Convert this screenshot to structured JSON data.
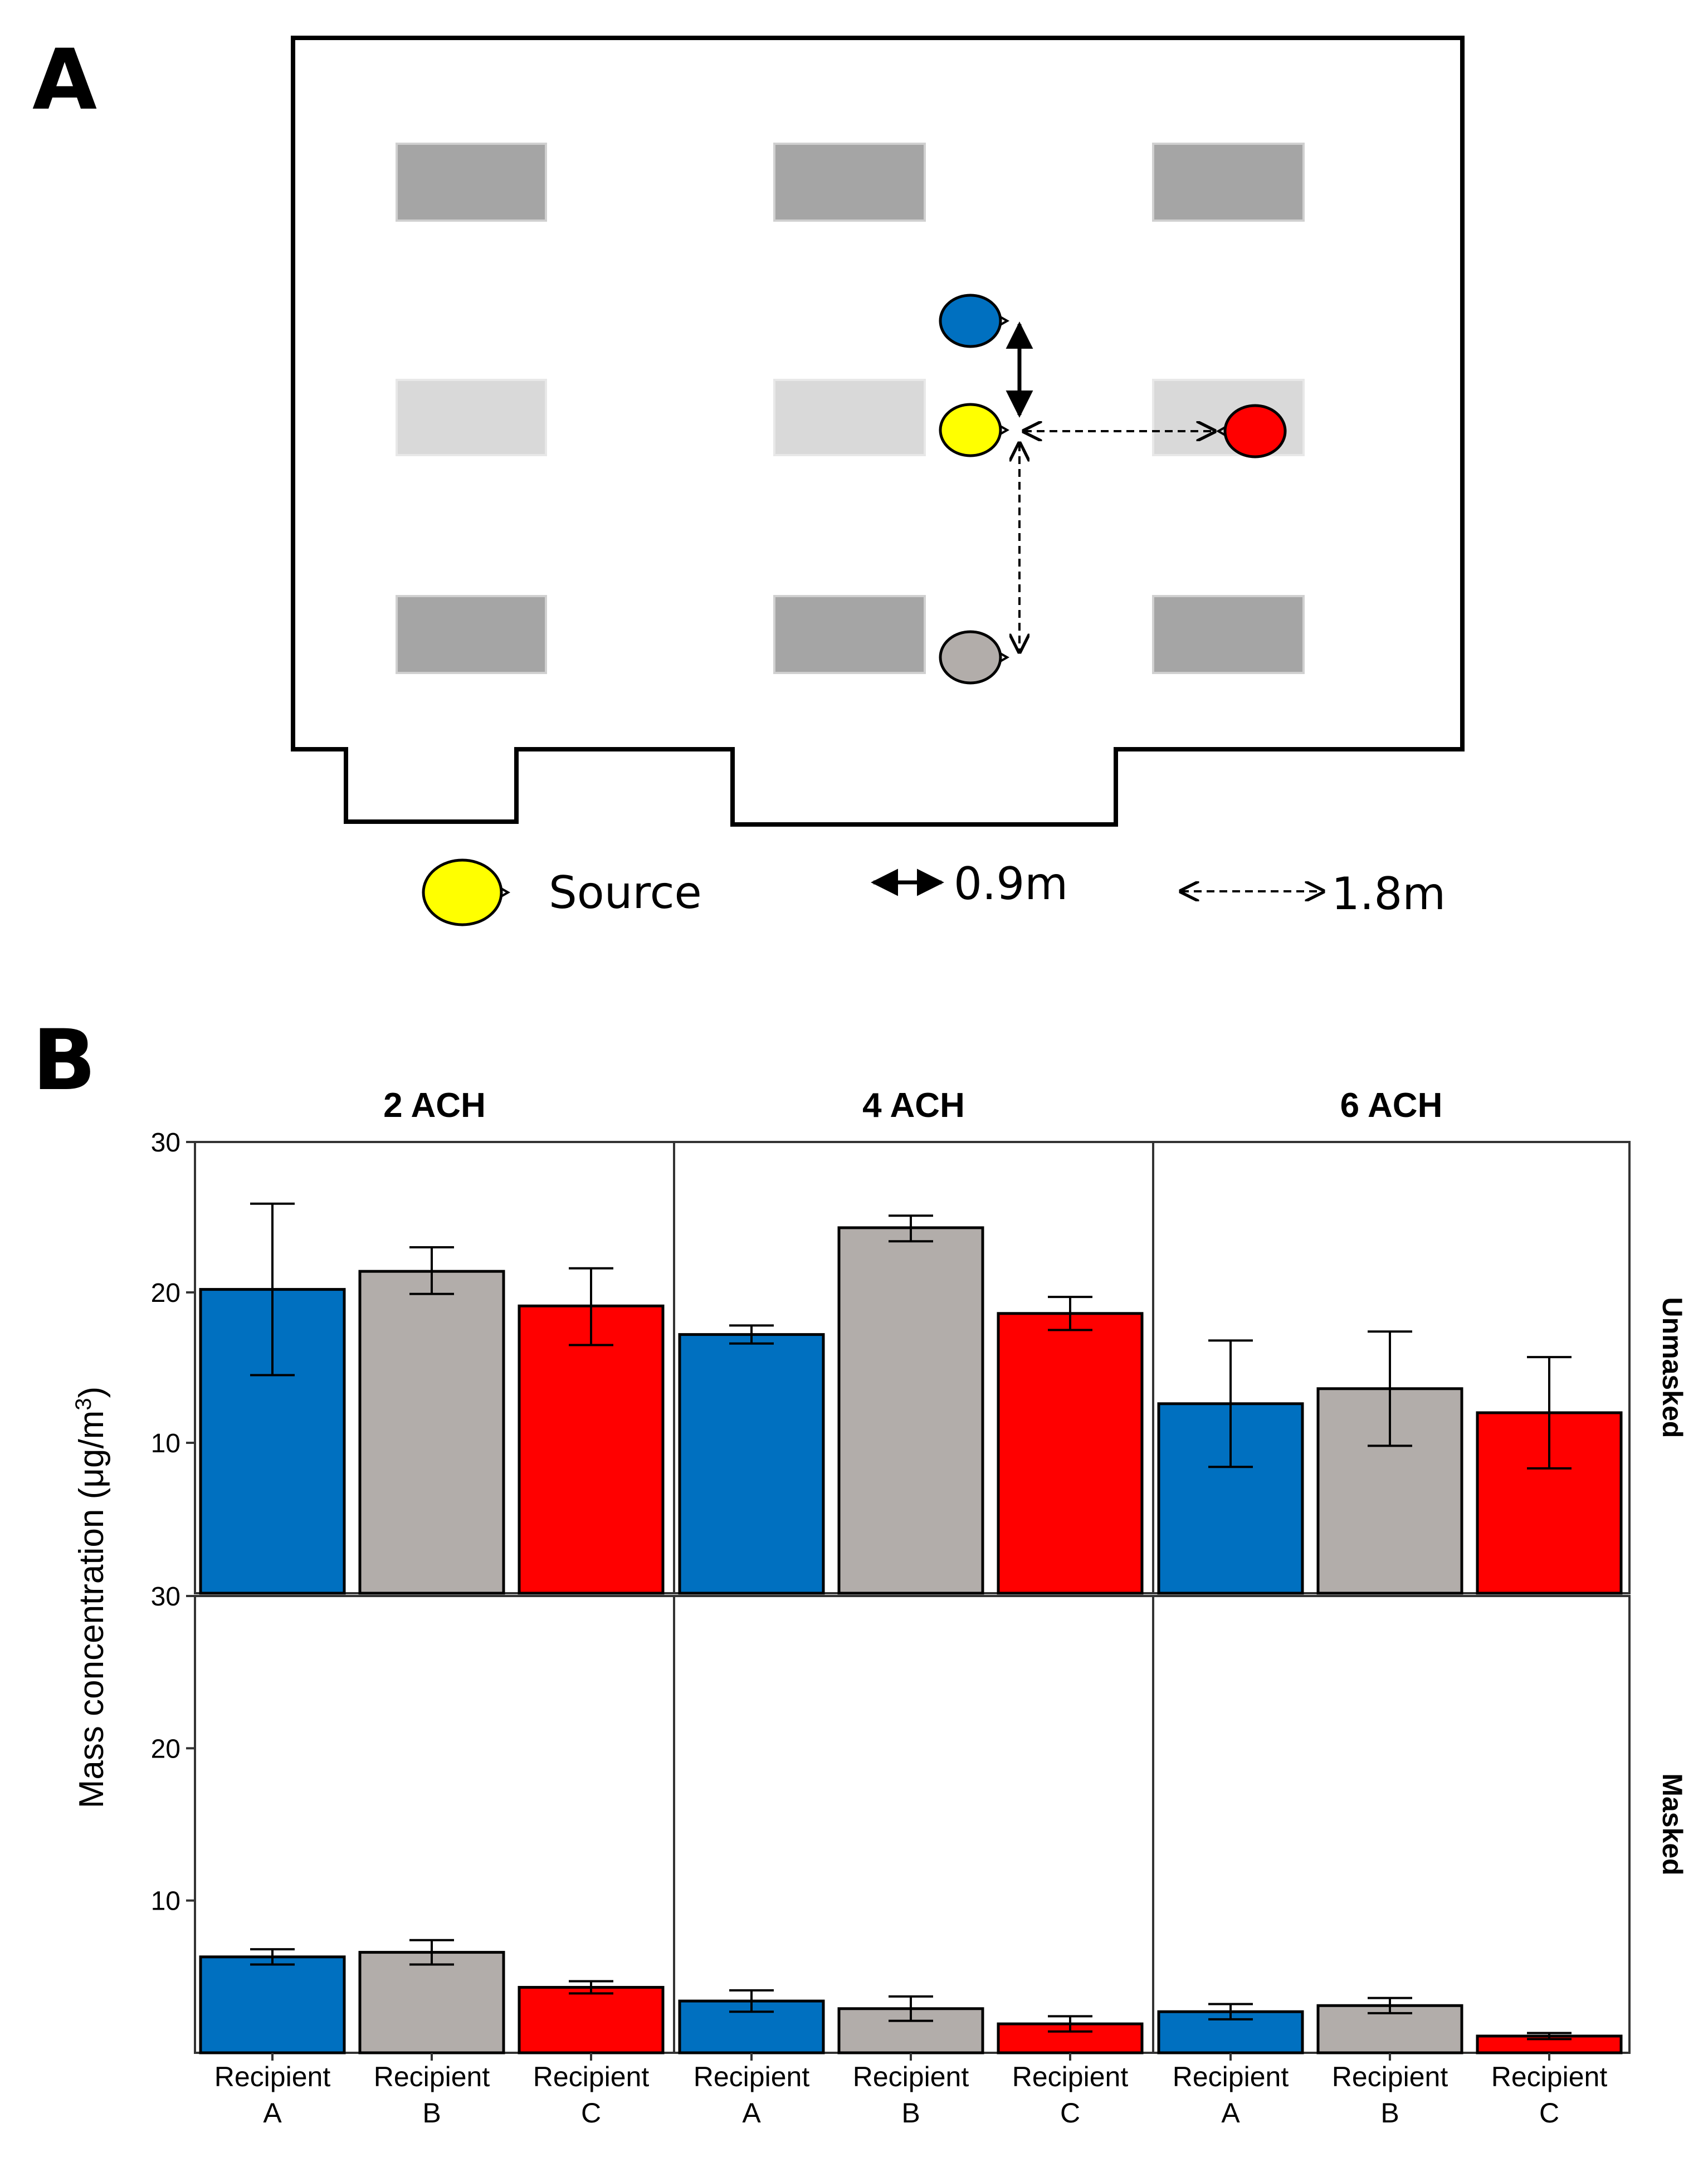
{
  "panels": {
    "a_label": "A",
    "b_label": "B"
  },
  "legend": {
    "source": "Source",
    "solid_distance": "0.9m",
    "dashed_distance": "1.8m"
  },
  "colors": {
    "recipient_a": "#0070C0",
    "recipient_b": "#B2ADAA",
    "recipient_c": "#FF0000",
    "source": "#FFFF00"
  },
  "chart_data": {
    "type": "bar",
    "ylabel": "Mass concentration (μg/m³)",
    "ylabel_main": "Mass concentration (μg/m",
    "ylabel_sup": "3",
    "ylabel_end": ")",
    "ylim": [
      0,
      30
    ],
    "yticks": [
      10,
      20,
      30
    ],
    "ach_levels": [
      "2 ACH",
      "4 ACH",
      "6 ACH"
    ],
    "conditions": [
      "Unmasked",
      "Masked"
    ],
    "categories_line1": [
      "Recipient",
      "Recipient",
      "Recipient"
    ],
    "categories_line2": [
      "A",
      "B",
      "C"
    ],
    "categories": [
      "Recipient A",
      "Recipient B",
      "Recipient C"
    ],
    "series": [
      {
        "condition": "Unmasked",
        "ach": "2 ACH",
        "values": [
          20.2,
          21.4,
          19.1
        ],
        "err_low": [
          14.5,
          19.9,
          16.5
        ],
        "err_high": [
          25.9,
          23.0,
          21.6
        ]
      },
      {
        "condition": "Unmasked",
        "ach": "4 ACH",
        "values": [
          17.2,
          24.3,
          18.6
        ],
        "err_low": [
          16.6,
          23.4,
          17.5
        ],
        "err_high": [
          17.8,
          25.1,
          19.7
        ]
      },
      {
        "condition": "Unmasked",
        "ach": "6 ACH",
        "values": [
          12.6,
          13.6,
          12.0
        ],
        "err_low": [
          8.4,
          9.8,
          8.3
        ],
        "err_high": [
          16.8,
          17.4,
          15.7
        ]
      },
      {
        "condition": "Masked",
        "ach": "2 ACH",
        "values": [
          6.3,
          6.6,
          4.3
        ],
        "err_low": [
          5.8,
          5.8,
          3.9
        ],
        "err_high": [
          6.8,
          7.4,
          4.7
        ]
      },
      {
        "condition": "Masked",
        "ach": "4 ACH",
        "values": [
          3.4,
          2.9,
          1.9
        ],
        "err_low": [
          2.7,
          2.1,
          1.4
        ],
        "err_high": [
          4.1,
          3.7,
          2.4
        ]
      },
      {
        "condition": "Masked",
        "ach": "6 ACH",
        "values": [
          2.7,
          3.1,
          1.1
        ],
        "err_low": [
          2.2,
          2.6,
          0.9
        ],
        "err_high": [
          3.2,
          3.6,
          1.3
        ]
      }
    ]
  }
}
